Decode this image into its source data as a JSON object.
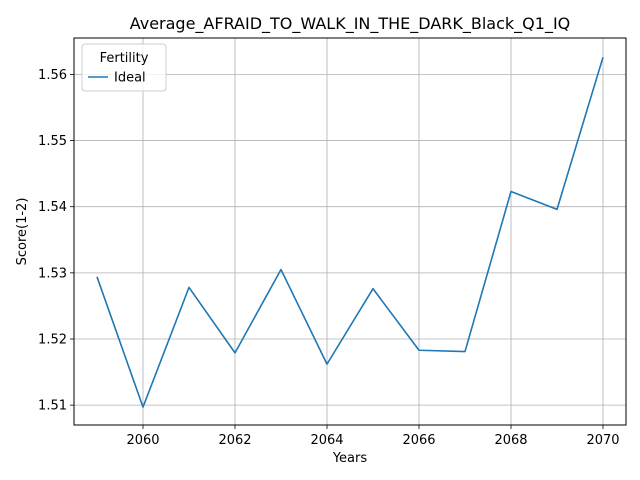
{
  "chart_data": {
    "type": "line",
    "title": "Average_AFRAID_TO_WALK_IN_THE_DARK_Black_Q1_IQ",
    "xlabel": "Years",
    "ylabel": "Score(1-2)",
    "xlim": [
      2058.5,
      2070.5
    ],
    "ylim": [
      1.507,
      1.5655
    ],
    "xticks": [
      2060,
      2062,
      2064,
      2066,
      2068,
      2070
    ],
    "yticks": [
      1.51,
      1.52,
      1.53,
      1.54,
      1.55,
      1.56
    ],
    "grid": true,
    "legend": {
      "title": "Fertility",
      "placement": "top-left"
    },
    "series": [
      {
        "name": "Ideal",
        "color": "#1f77b4",
        "x": [
          2059,
          2060,
          2061,
          2062,
          2063,
          2064,
          2065,
          2066,
          2067,
          2068,
          2069,
          2070
        ],
        "values": [
          1.5294,
          1.5097,
          1.5278,
          1.5179,
          1.5305,
          1.5162,
          1.5276,
          1.5183,
          1.5181,
          1.5423,
          1.5396,
          1.5626
        ]
      }
    ]
  }
}
